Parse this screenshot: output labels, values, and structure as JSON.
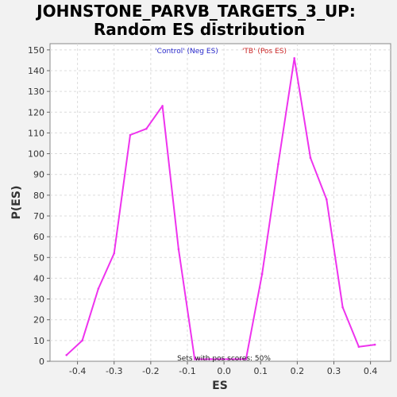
{
  "chart_data": {
    "type": "line",
    "title_line1": "JOHNSTONE_PARVB_TARGETS_3_UP:",
    "title_line2": "Random ES distribution",
    "xlabel": "ES",
    "ylabel": "P(ES)",
    "xlim": [
      -0.475,
      0.455
    ],
    "ylim": [
      0,
      153
    ],
    "x_ticks": [
      -0.4,
      -0.3,
      -0.2,
      -0.1,
      0.0,
      0.1,
      0.2,
      0.3,
      0.4
    ],
    "x_tick_labels": [
      "-0.4",
      "-0.3",
      "-0.2",
      "-0.1",
      "0.0",
      "0.1",
      "0.2",
      "0.3",
      "0.4"
    ],
    "y_ticks": [
      0,
      10,
      20,
      30,
      40,
      50,
      60,
      70,
      80,
      90,
      100,
      110,
      120,
      130,
      140,
      150
    ],
    "y_tick_labels": [
      "0",
      "10",
      "20",
      "30",
      "40",
      "50",
      "60",
      "70",
      "80",
      "90",
      "100",
      "110",
      "120",
      "130",
      "140",
      "150"
    ],
    "grid": true,
    "legend": [
      {
        "label": "'Control' (Neg ES)",
        "color": "#2a2acc"
      },
      {
        "label": "'TB' (Pos ES)",
        "color": "#cc2a2a"
      }
    ],
    "annotation": "Sets with pos scores: 50%",
    "series": [
      {
        "color": "#ee33ee",
        "x": [
          -0.43,
          -0.387,
          -0.343,
          -0.3,
          -0.256,
          -0.212,
          -0.168,
          -0.124,
          -0.08,
          -0.036,
          0.06,
          0.104,
          0.148,
          0.192,
          0.236,
          0.28,
          0.324,
          0.368,
          0.412
        ],
        "y": [
          3,
          10,
          35,
          52,
          109,
          112,
          123,
          54,
          1,
          1,
          1,
          42,
          95,
          146,
          98,
          78,
          26,
          7,
          8
        ]
      }
    ]
  }
}
